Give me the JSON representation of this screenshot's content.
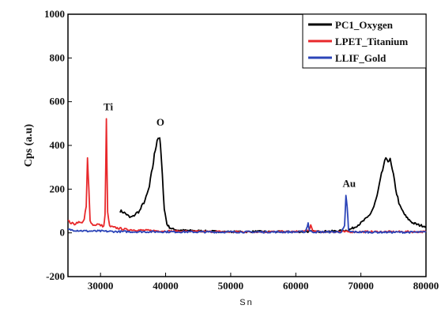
{
  "chart_data": {
    "type": "line",
    "title": "",
    "xlabel": "Sn",
    "ylabel": "Cps (a.u)",
    "xlim": [
      25000,
      80000
    ],
    "ylim": [
      -200,
      1000
    ],
    "x_ticks": [
      "30000",
      "40000",
      "50000",
      "60000",
      "70000",
      "80000"
    ],
    "y_ticks": [
      "-200",
      "0",
      "200",
      "400",
      "600",
      "800",
      "1000"
    ],
    "legend_position": "top-right",
    "grid": false,
    "series": [
      {
        "name": "PC1_Oxygen",
        "color": "#000000",
        "x": [
          33000,
          33500,
          34000,
          34500,
          35000,
          35500,
          36000,
          36500,
          37000,
          37500,
          38000,
          38400,
          38700,
          39000,
          39200,
          39500,
          39800,
          40200,
          40600,
          41000,
          42000,
          44000,
          46000,
          48000,
          50000,
          52000,
          54000,
          56000,
          58000,
          60000,
          62000,
          64000,
          66000,
          68000,
          69000,
          70000,
          71000,
          71500,
          72000,
          72500,
          73000,
          73500,
          74000,
          74500,
          75000,
          75500,
          76000,
          77000,
          78000,
          79000,
          80000
        ],
        "y": [
          100,
          95,
          85,
          70,
          75,
          90,
          100,
          130,
          160,
          210,
          300,
          380,
          430,
          440,
          400,
          260,
          110,
          40,
          25,
          18,
          12,
          10,
          8,
          6,
          5,
          5,
          6,
          5,
          5,
          5,
          6,
          6,
          8,
          12,
          25,
          45,
          70,
          90,
          120,
          170,
          240,
          310,
          340,
          330,
          260,
          180,
          120,
          70,
          45,
          35,
          30
        ]
      },
      {
        "name": "LPET_Titanium",
        "color": "#e8282b",
        "x": [
          25000,
          25500,
          26000,
          26500,
          27000,
          27500,
          27800,
          28000,
          28200,
          28400,
          28700,
          29000,
          29500,
          30000,
          30500,
          30700,
          30900,
          31100,
          31400,
          32000,
          33000,
          34000,
          36000,
          38000,
          40000,
          45000,
          50000,
          55000,
          60000,
          62000,
          62300,
          62600,
          63000,
          65000,
          70000,
          75000,
          80000
        ],
        "y": [
          55,
          45,
          40,
          50,
          45,
          60,
          120,
          335,
          200,
          60,
          40,
          35,
          40,
          35,
          30,
          80,
          510,
          90,
          30,
          25,
          20,
          15,
          12,
          10,
          8,
          6,
          5,
          5,
          5,
          10,
          35,
          10,
          5,
          5,
          5,
          5,
          5
        ]
      },
      {
        "name": "LLIF_Gold",
        "color": "#2b44b8",
        "x": [
          25000,
          26000,
          27000,
          28000,
          30000,
          32000,
          35000,
          40000,
          45000,
          50000,
          55000,
          60000,
          61500,
          61900,
          62100,
          62400,
          63000,
          65000,
          67000,
          67500,
          67700,
          67900,
          68100,
          68400,
          69000,
          72000,
          76000,
          80000
        ],
        "y": [
          15,
          12,
          10,
          8,
          8,
          6,
          5,
          5,
          4,
          4,
          4,
          4,
          5,
          45,
          10,
          5,
          4,
          4,
          4,
          30,
          165,
          120,
          10,
          5,
          4,
          3,
          3,
          3
        ]
      }
    ],
    "annotations": [
      {
        "text": "Ti",
        "x": 31200,
        "y": 560
      },
      {
        "text": "O",
        "x": 39200,
        "y": 490
      },
      {
        "text": "Au",
        "x": 68200,
        "y": 210
      }
    ]
  }
}
